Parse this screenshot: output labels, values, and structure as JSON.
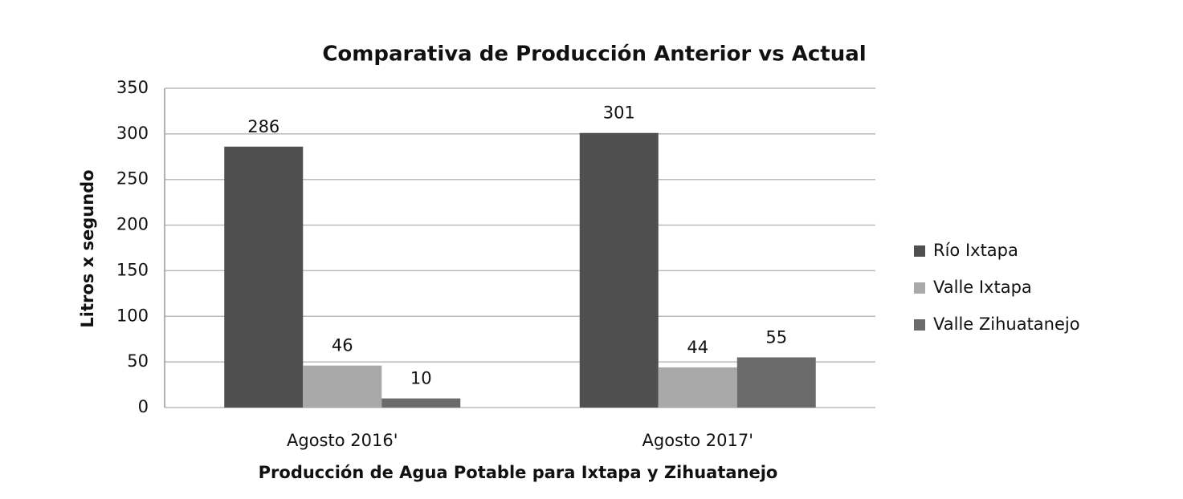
{
  "chart_data": {
    "type": "bar",
    "title": "Comparativa de Producción Anterior vs Actual",
    "x_label": "Producción de Agua Potable para Ixtapa y Zihuatanejo",
    "y_label": "Litros x segundo",
    "categories": [
      "Agosto 2016'",
      "Agosto 2017'"
    ],
    "series": [
      {
        "name": "Río Ixtapa",
        "color": "#4f4f4f",
        "values": [
          286,
          301
        ]
      },
      {
        "name": "Valle Ixtapa",
        "color": "#a9a9a9",
        "values": [
          46,
          44
        ]
      },
      {
        "name": "Valle Zihuatanejo",
        "color": "#6b6b6b",
        "values": [
          10,
          55
        ]
      }
    ],
    "ylim": [
      0,
      350
    ],
    "yticks": [
      0,
      50,
      100,
      150,
      200,
      250,
      300,
      350
    ],
    "grid": true,
    "legend": "right"
  }
}
